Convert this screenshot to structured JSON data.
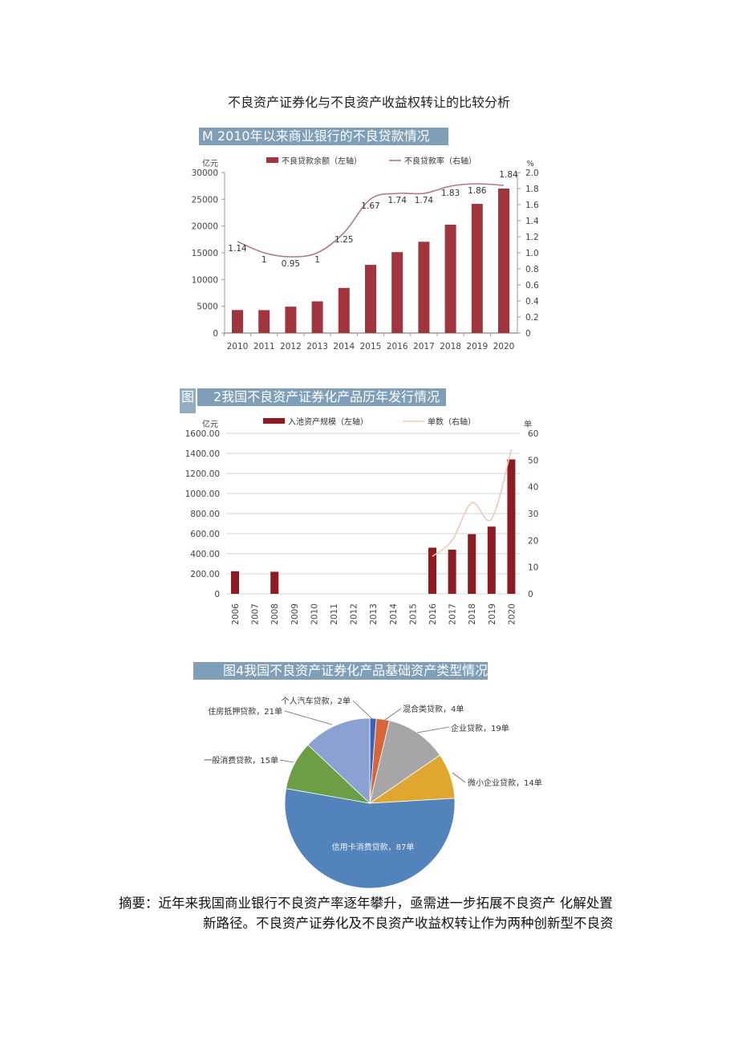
{
  "document": {
    "title": "不良资产证券化与不良资产收益权转让的比较分析",
    "abstract_line1": "摘要：近年来我国商业银行不良资产率逐年攀升，亟需进一步拓展不良资产 化解处置",
    "abstract_line2": "新路径。不良资产证券化及不良资产收益权转让作为两种创新型不良资"
  },
  "colors": {
    "header_bar": "#7f9fb8",
    "bar_red": "#a0353d",
    "bar_darkred": "#8e1b22",
    "rate_line": "#b07a80",
    "count_line": "#f2c8b4"
  },
  "chart_data": [
    {
      "type": "bar",
      "title": "M 2010年以来商业银行的不良贷款情况",
      "categories": [
        "2010",
        "2011",
        "2012",
        "2013",
        "2014",
        "2015",
        "2016",
        "2017",
        "2018",
        "2019",
        "2020"
      ],
      "ylabel": "亿元",
      "y2label": "%",
      "ylim": [
        0,
        30000
      ],
      "y2lim": [
        0,
        2.0
      ],
      "yticks": [
        "0",
        "5000",
        "10000",
        "15000",
        "20000",
        "25000",
        "30000"
      ],
      "y2ticks": [
        "0",
        "0.2",
        "0.4",
        "0.6",
        "0.8",
        "1.0",
        "1.2",
        "1.4",
        "1.6",
        "1.8",
        "2.0"
      ],
      "series": [
        {
          "name": "不良贷款余额（左轴）",
          "type": "bar",
          "axis": "left",
          "values": [
            4300,
            4280,
            4930,
            5920,
            8430,
            12740,
            15120,
            17060,
            20250,
            24140,
            27000
          ]
        },
        {
          "name": "不良贷款率（右轴）",
          "type": "line",
          "axis": "right",
          "values": [
            1.14,
            1,
            0.95,
            1,
            1.25,
            1.67,
            1.74,
            1.74,
            1.83,
            1.86,
            1.84
          ],
          "labels": [
            "1.14",
            "1",
            "0.95",
            "1",
            "1.25",
            "1.67",
            "1.74",
            "1.74",
            "1.83",
            "1.86",
            "1.84"
          ]
        }
      ],
      "legend": "top",
      "grid": false
    },
    {
      "type": "bar",
      "title_prefix": "图",
      "title": "2我国不良资产证券化产品历年发行情况",
      "categories": [
        "2006",
        "2007",
        "2008",
        "2009",
        "2010",
        "2011",
        "2012",
        "2013",
        "2014",
        "2015",
        "2016",
        "2017",
        "2018",
        "2019",
        "2020"
      ],
      "ylabel": "亿元",
      "y2label": "单",
      "ylim": [
        0,
        1600
      ],
      "y2lim": [
        0,
        60
      ],
      "yticks": [
        "0",
        "200.00",
        "400.00",
        "600.00",
        "800.00",
        "1000.00",
        "1200.00",
        "1400.00",
        "1600.00"
      ],
      "y2ticks": [
        "0",
        "10",
        "20",
        "30",
        "40",
        "50",
        "60"
      ],
      "series": [
        {
          "name": "入池资产规模（左轴）",
          "type": "bar",
          "axis": "left",
          "values": [
            225,
            0,
            220,
            0,
            0,
            0,
            0,
            0,
            0,
            0,
            460,
            440,
            595,
            670,
            1340
          ]
        },
        {
          "name": "单数（右轴）",
          "type": "line",
          "axis": "right",
          "values": [
            null,
            null,
            null,
            null,
            null,
            null,
            null,
            null,
            null,
            null,
            14,
            20,
            34,
            28,
            54
          ]
        }
      ],
      "legend": "top",
      "grid": true
    },
    {
      "type": "pie",
      "title": "图4我国不良资产证券化产品基础资产类型情况",
      "slices": [
        {
          "label": "个人汽车贷款，2单",
          "value": 2,
          "color": "#3a62b5"
        },
        {
          "label": "混合类贷款，4单",
          "value": 4,
          "color": "#d8653a"
        },
        {
          "label": "企业贷款，19单",
          "value": 19,
          "color": "#a6a6a8"
        },
        {
          "label": "微小企业贷款，14单",
          "value": 14,
          "color": "#e0a62e"
        },
        {
          "label": "信用卡消费贷款，87单",
          "value": 87,
          "color": "#5283bb"
        },
        {
          "label": "一般消费贷款，15单",
          "value": 15,
          "color": "#6b9e45"
        },
        {
          "label": "住房抵押贷款，21单",
          "value": 21,
          "color": "#8aa1d2"
        }
      ]
    }
  ]
}
